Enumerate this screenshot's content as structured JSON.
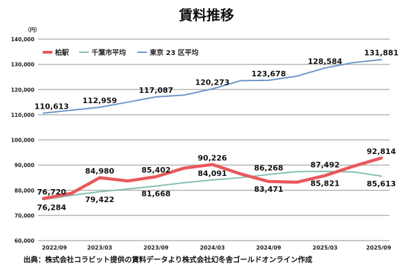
{
  "chart_data": {
    "type": "line",
    "title": "賃料推移",
    "unit_label": "（円）",
    "source": "出典：株式会社コラビット提供の賃料データより株式会社幻冬舎ゴールドオンライン作成",
    "x": [
      "2022/09",
      "2022/12",
      "2023/03",
      "2023/06",
      "2023/09",
      "2023/12",
      "2024/03",
      "2024/06",
      "2024/09",
      "2024/12",
      "2025/03",
      "2025/06",
      "2025/09"
    ],
    "xticks": [
      "2022/09",
      "2023/03",
      "2023/09",
      "2024/03",
      "2024/09",
      "2025/03",
      "2025/09"
    ],
    "ylim": [
      60000,
      140000
    ],
    "yticks": [
      "60,000",
      "70,000",
      "80,000",
      "90,000",
      "100,000",
      "110,000",
      "120,000",
      "130,000",
      "140,000"
    ],
    "grid": true,
    "legend_placement": "top-left",
    "series": [
      {
        "name": "柏駅",
        "color": "#e8585a",
        "values": [
          76720,
          78800,
          84980,
          83700,
          85402,
          88800,
          90226,
          86500,
          83471,
          83200,
          85821,
          89500,
          92814
        ],
        "labels": {
          "0": [
            "76,720",
            "above"
          ],
          "2": [
            "84,980",
            "above"
          ],
          "4": [
            "85,402",
            "above"
          ],
          "6": [
            "90,226",
            "above"
          ],
          "8": [
            "83,471",
            "below"
          ],
          "10": [
            "85,821",
            "below"
          ],
          "12": [
            "92,814",
            "above"
          ]
        }
      },
      {
        "name": "千葉市平均",
        "color": "#7fbfb5",
        "values": [
          76284,
          78000,
          79422,
          80500,
          81668,
          83000,
          84091,
          85000,
          86268,
          87400,
          87492,
          87300,
          85613
        ],
        "labels": {
          "0": [
            "76,284",
            "below"
          ],
          "2": [
            "79,422",
            "below"
          ],
          "4": [
            "81,668",
            "below"
          ],
          "6": [
            "84,091",
            "above"
          ],
          "8": [
            "86,268",
            "above"
          ],
          "10": [
            "87,492",
            "above"
          ],
          "12": [
            "85,613",
            "below"
          ]
        }
      },
      {
        "name": "東京 23 区平均",
        "color": "#6b95c8",
        "values": [
          110613,
          111800,
          112959,
          115000,
          117087,
          117800,
          120273,
          123500,
          123678,
          125300,
          128584,
          130700,
          131881
        ],
        "labels": {
          "0": [
            "110,613",
            "above"
          ],
          "2": [
            "112,959",
            "above"
          ],
          "4": [
            "117,087",
            "above"
          ],
          "6": [
            "120,273",
            "above"
          ],
          "8": [
            "123,678",
            "above"
          ],
          "10": [
            "128,584",
            "above"
          ],
          "12": [
            "131,881",
            "above"
          ]
        }
      }
    ]
  }
}
